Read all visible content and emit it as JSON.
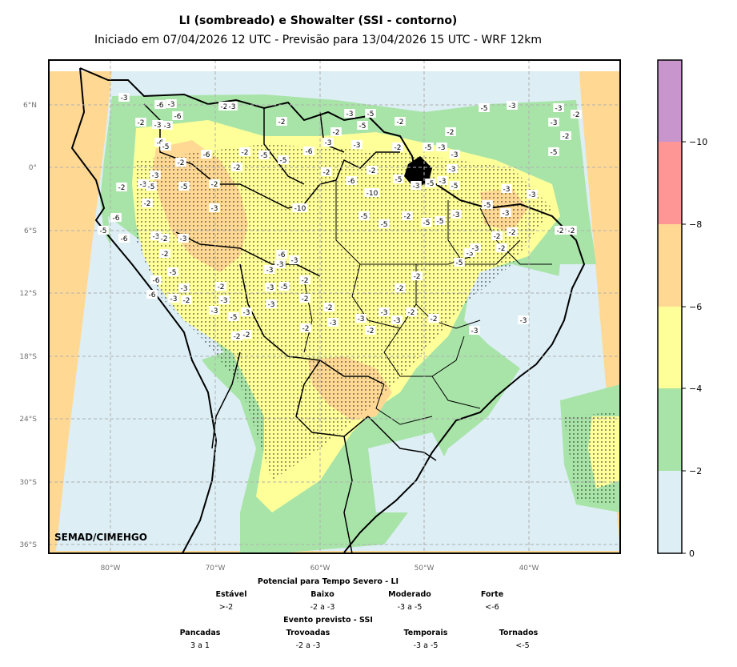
{
  "title": "LI (sombreado) e Showalter (SSI - contorno)",
  "subtitle": "Iniciado em 07/04/2026 12 UTC - Previsão para 13/04/2026 15 UTC - WRF 12km",
  "watermark": "SEMAD/CIMEHGO",
  "map": {
    "lat_labels": [
      "6°N",
      "0°",
      "6°S",
      "12°S",
      "18°S",
      "24°S",
      "30°S",
      "36°S"
    ],
    "lon_labels": [
      "80°W",
      "70°W",
      "60°W",
      "50°W",
      "40°W"
    ]
  },
  "colorbar": {
    "ticks": [
      "0",
      "−2",
      "−4",
      "−6",
      "−8",
      "−10"
    ],
    "colors": [
      "#ddeef5",
      "#a8e4a8",
      "#ffff99",
      "#ffd993",
      "#ff9696",
      "#c896cd"
    ]
  },
  "legend": {
    "li_title": "Potencial para Tempo Severo - LI",
    "li_items": [
      {
        "label": "Estável",
        "value": ">-2"
      },
      {
        "label": "Baixo",
        "value": "-2 a -3"
      },
      {
        "label": "Moderado",
        "value": "-3 a -5"
      },
      {
        "label": "Forte",
        "value": "<-6"
      }
    ],
    "ssi_title": "Evento previsto - SSI",
    "ssi_items": [
      {
        "label": "Pancadas",
        "value": "3 a 1"
      },
      {
        "label": "Trovoadas",
        "value": "-2 a -3"
      },
      {
        "label": "Temporais",
        "value": "-3 a -5"
      },
      {
        "label": "Tornados",
        "value": "<-5"
      }
    ]
  },
  "contour_labels": [
    "-3",
    "-6",
    "-3",
    "-2",
    "-3",
    "-3",
    "-6",
    "-6",
    "-5",
    "-2",
    "-3",
    "-2",
    "-3",
    "-5",
    "-5",
    "-2",
    "-5",
    "-3",
    "-3",
    "-2",
    "-3",
    "-2",
    "-5",
    "-2",
    "-5",
    "-3",
    "-3",
    "-2",
    "-3",
    "-6",
    "-3",
    "-2",
    "-5",
    "-5",
    "-2",
    "-6",
    "-2",
    "-2",
    "-3",
    "-3",
    "-5",
    "-5",
    "-2",
    "-2",
    "-2",
    "-3",
    "-10",
    "-2",
    "-6",
    "-2",
    "-10",
    "-5",
    "-3",
    "-5",
    "-3",
    "-5",
    "-3",
    "-3",
    "-3",
    "-5",
    "-5",
    "-2",
    "-5",
    "-5",
    "-3",
    "-5",
    "-3",
    "-2",
    "-2",
    "-6",
    "-5",
    "-6",
    "-3",
    "-2",
    "-3",
    "-2",
    "-5",
    "-6",
    "-3",
    "-2",
    "-6",
    "-3",
    "-3",
    "-2",
    "-3",
    "-3",
    "-5",
    "-2",
    "-2",
    "-3",
    "-6",
    "-3",
    "-3",
    "-2",
    "-5",
    "-3",
    "-3",
    "-2",
    "-2",
    "-2",
    "-3",
    "-3",
    "-2",
    "-2",
    "-3",
    "-3",
    "-2",
    "-2",
    "-2",
    "-3",
    "-5",
    "-3",
    "-2",
    "-2",
    "-2",
    "-3",
    "-3"
  ]
}
